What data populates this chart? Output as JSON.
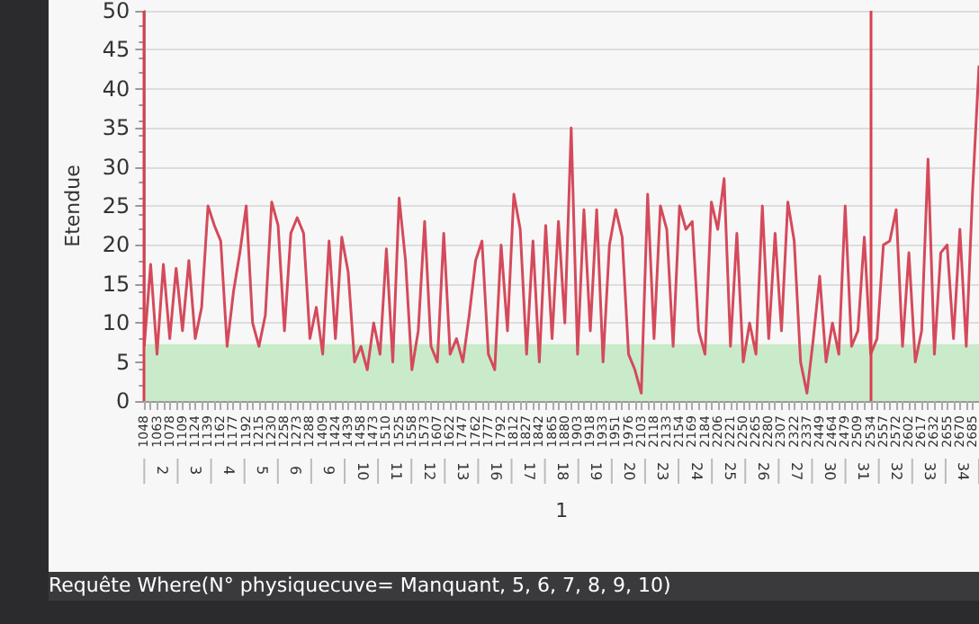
{
  "chart_data": {
    "type": "line",
    "ylabel": "Etendue",
    "categories": [
      "1048",
      null,
      "1063",
      null,
      "1078",
      null,
      "1109",
      null,
      "1124",
      null,
      "1139",
      null,
      "1162",
      null,
      "1177",
      null,
      "1192",
      null,
      "1215",
      null,
      "1230",
      null,
      "1258",
      null,
      "1273",
      null,
      "1288",
      null,
      "1409",
      null,
      "1424",
      null,
      "1439",
      null,
      "1458",
      null,
      "1473",
      null,
      "1510",
      null,
      "1525",
      null,
      "1558",
      null,
      "1573",
      null,
      "1607",
      null,
      "1622",
      null,
      "1747",
      null,
      "1762",
      null,
      "1777",
      null,
      "1792",
      null,
      "1812",
      null,
      "1827",
      null,
      "1842",
      null,
      "1865",
      null,
      "1880",
      null,
      "1903",
      null,
      "1918",
      null,
      "1933",
      null,
      "1951",
      null,
      "1976",
      null,
      "2103",
      null,
      "2118",
      null,
      "2133",
      null,
      "2154",
      null,
      "2169",
      null,
      "2184",
      null,
      "2206",
      null,
      "2221",
      null,
      "2250",
      null,
      "2265",
      null,
      "2280",
      null,
      "2307",
      null,
      "2322",
      null,
      "2337",
      null,
      "2449",
      null,
      "2464",
      null,
      "2479",
      null,
      "2509",
      null,
      "2534",
      null,
      "2557",
      null,
      "2572",
      null,
      "2602",
      null,
      "2617",
      null,
      "2632",
      null,
      "2655",
      null,
      "2670",
      null,
      "2685",
      null
    ],
    "values": [
      7,
      17.5,
      6,
      17.5,
      8,
      17,
      9,
      18,
      8,
      12,
      25,
      22.5,
      20.5,
      7,
      14,
      19,
      25,
      10,
      7,
      11,
      25.5,
      22.5,
      9,
      21.5,
      23.5,
      21.5,
      8,
      12,
      6,
      20.5,
      8,
      21,
      16.5,
      5,
      7,
      4,
      10,
      6,
      19.5,
      5,
      26,
      18,
      4,
      9,
      23,
      7,
      5,
      21.5,
      6,
      8,
      5,
      11,
      18,
      20.5,
      6,
      4,
      20,
      9,
      26.5,
      22,
      6,
      20.5,
      5,
      22.5,
      8,
      23,
      10,
      35,
      6,
      24.5,
      9,
      24.5,
      5,
      20,
      24.5,
      21,
      6,
      4,
      1,
      26.5,
      8,
      25,
      22,
      7,
      25,
      22,
      23,
      9,
      6,
      25.5,
      22,
      28.5,
      7,
      21.5,
      5,
      10,
      6,
      25,
      8,
      21.5,
      9,
      25.5,
      20.5,
      5,
      1,
      8,
      16,
      5,
      10,
      6,
      25,
      7,
      9,
      21,
      6,
      8,
      20,
      20.5,
      24.5,
      7,
      19,
      5,
      9,
      31,
      6,
      19,
      20,
      8,
      22,
      7,
      27,
      43
    ],
    "color": "#d44a5b",
    "ylim": [
      0,
      50
    ],
    "yticks": [
      0,
      5,
      10,
      15,
      20,
      25,
      30,
      35,
      40,
      45,
      50
    ],
    "grid": "y",
    "marker": "none",
    "line_style": "solid",
    "bands": [
      {
        "axis": "y",
        "from": 0,
        "to": 7.3,
        "color": "#c9ebc9"
      }
    ],
    "ref_lines": [
      {
        "axis": "x",
        "value": "1048",
        "color": "#d9404f"
      },
      {
        "axis": "x",
        "value": "2534",
        "color": "#d9404f"
      }
    ],
    "annotations": [
      "2",
      "3",
      "4",
      "5",
      "6",
      "9",
      "10",
      "11",
      "12",
      "13",
      "16",
      "17",
      "18",
      "19",
      "20",
      "23",
      "24",
      "25",
      "26",
      "27",
      "30",
      "31",
      "32",
      "33",
      "34",
      "1",
      "Requête Where(N° physiquecuve= Manquant, 5, 6, 7, 8, 9, 10)"
    ]
  }
}
